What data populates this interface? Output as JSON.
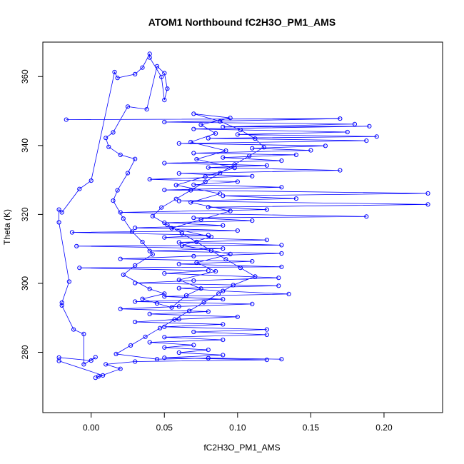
{
  "chart_data": {
    "type": "scatter",
    "title": "ATOM1 Northbound fC2H3O_PM1_AMS",
    "xlabel": "fC2H3O_PM1_AMS",
    "ylabel": "Theta (K)",
    "xlim": [
      -0.033,
      0.24
    ],
    "ylim": [
      262.5,
      370
    ],
    "x_ticks": [
      0.0,
      0.05,
      0.1,
      0.15,
      0.2
    ],
    "x_tick_labels": [
      "0.00",
      "0.05",
      "0.10",
      "0.15",
      "0.20"
    ],
    "y_ticks": [
      280,
      300,
      320,
      340,
      360
    ],
    "y_tick_labels": [
      "280",
      "300",
      "320",
      "340",
      "360"
    ],
    "grid": false,
    "legend": "none",
    "series": [
      {
        "marker": "open-circle",
        "connected": true,
        "color": "#0000ff",
        "points": [
          [
            -0.017,
            347.5
          ],
          [
            0.17,
            347.8
          ],
          [
            0.05,
            346.8
          ],
          [
            0.18,
            346.2
          ],
          [
            0.09,
            345.4
          ],
          [
            0.19,
            345.6
          ],
          [
            0.07,
            344.8
          ],
          [
            0.175,
            343.9
          ],
          [
            0.1,
            343.2
          ],
          [
            0.195,
            342.6
          ],
          [
            0.08,
            342.1
          ],
          [
            0.188,
            341.4
          ],
          [
            0.06,
            340.6
          ],
          [
            0.16,
            339.9
          ],
          [
            0.11,
            339.2
          ],
          [
            0.15,
            338.6
          ],
          [
            0.07,
            337.8
          ],
          [
            0.14,
            337.3
          ],
          [
            0.09,
            336.5
          ],
          [
            0.13,
            335.6
          ],
          [
            0.05,
            334.9
          ],
          [
            0.12,
            334.2
          ],
          [
            0.08,
            333.6
          ],
          [
            0.17,
            332.8
          ],
          [
            0.06,
            331.9
          ],
          [
            0.11,
            331.1
          ],
          [
            0.04,
            330.2
          ],
          [
            0.1,
            329.5
          ],
          [
            0.07,
            328.6
          ],
          [
            0.13,
            327.9
          ],
          [
            0.05,
            327.1
          ],
          [
            0.23,
            326.1
          ],
          [
            0.09,
            325.4
          ],
          [
            0.14,
            324.6
          ],
          [
            0.06,
            323.9
          ],
          [
            0.23,
            322.9
          ],
          [
            0.08,
            322.1
          ],
          [
            0.12,
            321.4
          ],
          [
            0.02,
            320.6
          ],
          [
            0.188,
            319.4
          ],
          [
            0.07,
            319.0
          ],
          [
            0.11,
            318.2
          ],
          [
            0.05,
            317.6
          ],
          [
            0.09,
            316.8
          ],
          [
            0.03,
            316.1
          ],
          [
            0.1,
            315.3
          ],
          [
            -0.013,
            314.8
          ],
          [
            0.08,
            314.0
          ],
          [
            0.05,
            313.3
          ],
          [
            0.12,
            312.6
          ],
          [
            0.06,
            311.9
          ],
          [
            0.13,
            311.1
          ],
          [
            -0.01,
            310.8
          ],
          [
            0.09,
            310.1
          ],
          [
            0.04,
            309.4
          ],
          [
            0.13,
            308.7
          ],
          [
            0.07,
            307.9
          ],
          [
            0.02,
            307.1
          ],
          [
            0.11,
            306.4
          ],
          [
            0.06,
            305.6
          ],
          [
            0.13,
            304.8
          ],
          [
            -0.008,
            304.5
          ],
          [
            0.08,
            303.7
          ],
          [
            0.05,
            302.9
          ],
          [
            0.128,
            301.6
          ],
          [
            0.07,
            300.8
          ],
          [
            0.03,
            300.1
          ],
          [
            0.128,
            299.3
          ],
          [
            0.06,
            298.6
          ],
          [
            0.09,
            297.8
          ],
          [
            0.135,
            296.9
          ],
          [
            0.05,
            296.2
          ],
          [
            0.09,
            295.4
          ],
          [
            0.03,
            294.7
          ],
          [
            0.11,
            294.0
          ],
          [
            0.06,
            293.3
          ],
          [
            0.02,
            292.6
          ],
          [
            0.08,
            291.8
          ],
          [
            0.04,
            291.1
          ],
          [
            0.1,
            290.3
          ],
          [
            0.06,
            289.6
          ],
          [
            0.03,
            288.8
          ],
          [
            0.09,
            288.1
          ],
          [
            0.05,
            287.4
          ],
          [
            0.12,
            286.6
          ],
          [
            0.07,
            285.9
          ],
          [
            0.12,
            285.1
          ],
          [
            0.05,
            284.4
          ],
          [
            0.09,
            283.6
          ],
          [
            0.04,
            282.9
          ],
          [
            0.07,
            282.1
          ],
          [
            0.05,
            281.4
          ],
          [
            0.08,
            280.7
          ],
          [
            0.06,
            279.9
          ],
          [
            0.09,
            279.2
          ],
          [
            0.05,
            278.4
          ],
          [
            0.12,
            277.8
          ],
          [
            0.03,
            277.3
          ],
          [
            0.01,
            276.5
          ],
          [
            0.02,
            275.2
          ],
          [
            0.003,
            272.6
          ],
          [
            0.005,
            273.0
          ],
          [
            0.008,
            273.3
          ],
          [
            -0.022,
            277.5
          ],
          [
            -0.022,
            278.5
          ],
          [
            0.0,
            277.6
          ],
          [
            0.003,
            278.6
          ],
          [
            -0.005,
            276.5
          ],
          [
            -0.005,
            285.3
          ],
          [
            -0.012,
            286.6
          ],
          [
            -0.02,
            293.6
          ],
          [
            -0.02,
            294.4
          ],
          [
            -0.015,
            300.5
          ],
          [
            -0.022,
            317.7
          ],
          [
            -0.022,
            321.4
          ],
          [
            -0.02,
            320.6
          ],
          [
            -0.008,
            327.4
          ],
          [
            0.0,
            329.8
          ],
          [
            0.016,
            361.3
          ],
          [
            0.018,
            359.6
          ],
          [
            0.03,
            360.7
          ],
          [
            0.035,
            362.6
          ],
          [
            0.04,
            366.6
          ],
          [
            0.04,
            365.5
          ],
          [
            0.048,
            359.9
          ],
          [
            0.05,
            353.2
          ],
          [
            0.052,
            356.5
          ],
          [
            0.05,
            361.0
          ],
          [
            0.045,
            363.0
          ],
          [
            0.038,
            350.5
          ],
          [
            0.025,
            351.3
          ],
          [
            0.015,
            343.8
          ],
          [
            0.01,
            342.2
          ],
          [
            0.012,
            339.6
          ],
          [
            0.02,
            337.3
          ],
          [
            0.03,
            336.1
          ],
          [
            0.025,
            332.0
          ],
          [
            0.018,
            327.0
          ],
          [
            0.015,
            324.0
          ],
          [
            0.022,
            318.8
          ],
          [
            0.028,
            315.0
          ],
          [
            0.035,
            312.0
          ],
          [
            0.042,
            308.4
          ],
          [
            0.03,
            305.2
          ],
          [
            0.022,
            302.5
          ],
          [
            0.04,
            298.4
          ],
          [
            0.05,
            297.0
          ],
          [
            0.035,
            295.5
          ],
          [
            0.045,
            294.2
          ],
          [
            0.055,
            293.0
          ],
          [
            0.065,
            296.5
          ],
          [
            0.075,
            298.5
          ],
          [
            0.06,
            301.0
          ],
          [
            0.085,
            303.5
          ],
          [
            0.072,
            306.0
          ],
          [
            0.095,
            308.5
          ],
          [
            0.062,
            311.0
          ],
          [
            0.082,
            313.5
          ],
          [
            0.055,
            316.0
          ],
          [
            0.075,
            318.5
          ],
          [
            0.095,
            321.0
          ],
          [
            0.068,
            323.5
          ],
          [
            0.088,
            326.0
          ],
          [
            0.058,
            328.5
          ],
          [
            0.078,
            331.0
          ],
          [
            0.098,
            333.5
          ],
          [
            0.072,
            336.0
          ],
          [
            0.092,
            338.5
          ],
          [
            0.068,
            341.0
          ],
          [
            0.085,
            343.5
          ],
          [
            0.075,
            346.0
          ],
          [
            0.095,
            348.0
          ],
          [
            0.07,
            349.2
          ],
          [
            0.088,
            347.0
          ],
          [
            0.102,
            344.5
          ],
          [
            0.112,
            342.0
          ],
          [
            0.118,
            339.5
          ],
          [
            0.108,
            337.0
          ],
          [
            0.098,
            334.5
          ],
          [
            0.088,
            332.0
          ],
          [
            0.078,
            329.5
          ],
          [
            0.068,
            327.0
          ],
          [
            0.058,
            324.5
          ],
          [
            0.048,
            322.0
          ],
          [
            0.042,
            319.5
          ],
          [
            0.052,
            317.0
          ],
          [
            0.062,
            314.5
          ],
          [
            0.072,
            312.0
          ],
          [
            0.082,
            309.5
          ],
          [
            0.092,
            307.0
          ],
          [
            0.102,
            304.5
          ],
          [
            0.112,
            302.0
          ],
          [
            0.097,
            299.5
          ],
          [
            0.087,
            297.0
          ],
          [
            0.077,
            294.5
          ],
          [
            0.067,
            292.0
          ],
          [
            0.057,
            289.5
          ],
          [
            0.047,
            287.0
          ],
          [
            0.037,
            284.5
          ],
          [
            0.027,
            282.0
          ],
          [
            0.017,
            279.5
          ],
          [
            0.045,
            278.0
          ],
          [
            0.08,
            278.3
          ],
          [
            0.13,
            278.0
          ]
        ]
      }
    ]
  }
}
